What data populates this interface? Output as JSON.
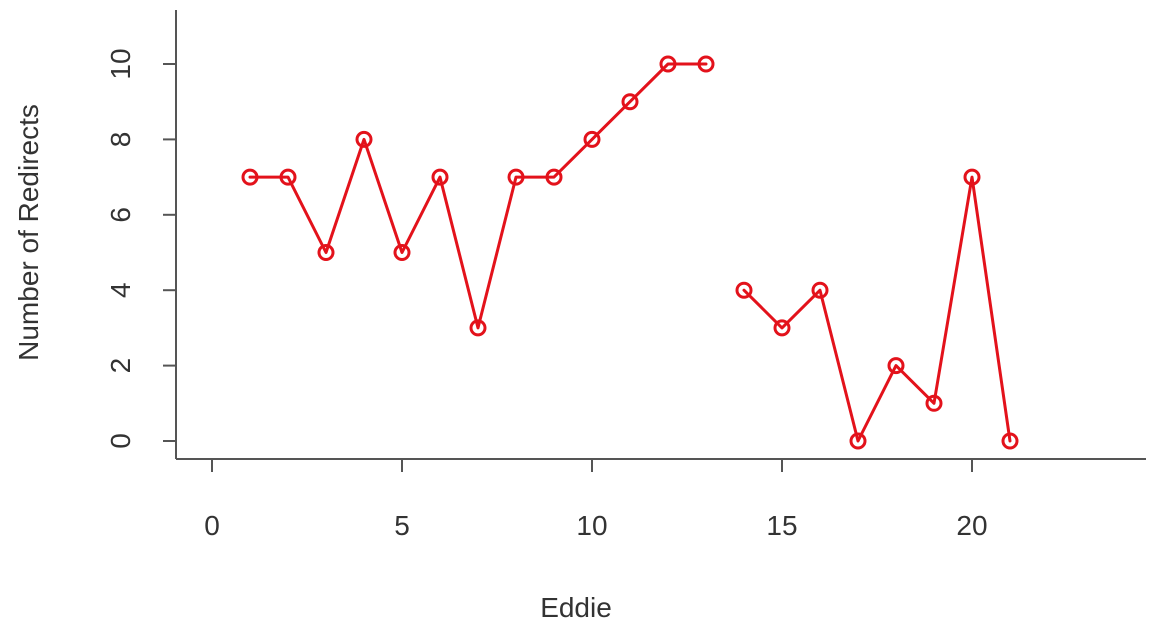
{
  "chart_data": {
    "type": "line",
    "title": "",
    "xlabel": "Eddie",
    "ylabel": "Number of Redirects",
    "xlim": [
      -1,
      24
    ],
    "ylim": [
      -0.5,
      11.5
    ],
    "xticks": [
      0,
      5,
      10,
      15,
      20
    ],
    "yticks": [
      0,
      2,
      4,
      6,
      8,
      10
    ],
    "grid": false,
    "legend": "none",
    "color": "#e3121b",
    "series": [
      {
        "segments": [
          {
            "x": [
              1,
              2,
              3,
              4,
              5,
              6,
              7,
              8,
              9,
              10,
              11,
              12,
              13
            ],
            "y": [
              7,
              7,
              5,
              8,
              5,
              7,
              3,
              7,
              7,
              8,
              9,
              10,
              10
            ]
          },
          {
            "x": [
              14,
              15,
              16,
              17,
              18,
              19,
              20,
              21
            ],
            "y": [
              4,
              3,
              4,
              0,
              2,
              1,
              7,
              0
            ]
          }
        ]
      }
    ]
  }
}
